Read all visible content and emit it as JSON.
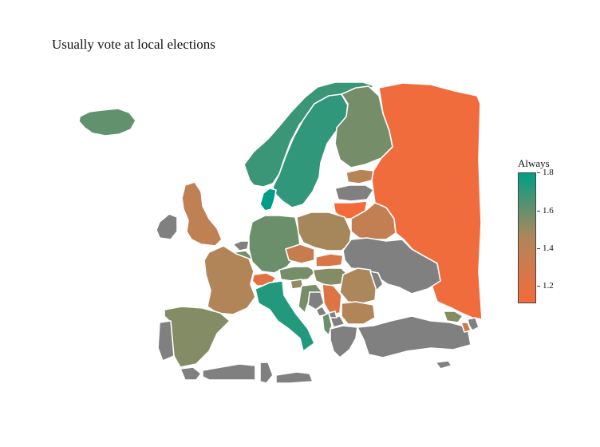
{
  "title": "Usually vote at local elections",
  "legend": {
    "title": "Always",
    "ticks": [
      "1.8",
      "1.6",
      "1.4",
      "1.2"
    ],
    "colors": {
      "high": "#009e86",
      "mid": "#b0865a",
      "low": "#f56a3a",
      "no_data": "#808080"
    },
    "range": [
      1.1,
      1.82
    ]
  },
  "map_data": {
    "scale": "continuous",
    "countries": [
      {
        "name": "Iceland",
        "value": 1.62
      },
      {
        "name": "Norway",
        "value": 1.7
      },
      {
        "name": "Sweden",
        "value": 1.72
      },
      {
        "name": "Finland",
        "value": 1.58
      },
      {
        "name": "Denmark",
        "value": 1.82
      },
      {
        "name": "Estonia",
        "value": 1.42
      },
      {
        "name": "Latvia",
        "value": null
      },
      {
        "name": "Lithuania",
        "value": 1.1
      },
      {
        "name": "Belarus",
        "value": 1.37
      },
      {
        "name": "Russia",
        "value": 1.12
      },
      {
        "name": "Ireland",
        "value": null
      },
      {
        "name": "United Kingdom",
        "value": 1.38
      },
      {
        "name": "Netherlands",
        "value": null
      },
      {
        "name": "Belgium",
        "value": 1.58
      },
      {
        "name": "Germany",
        "value": 1.6
      },
      {
        "name": "Poland",
        "value": 1.48
      },
      {
        "name": "France",
        "value": 1.45
      },
      {
        "name": "Switzerland",
        "value": 1.2
      },
      {
        "name": "Austria",
        "value": 1.58
      },
      {
        "name": "Czechia",
        "value": 1.35
      },
      {
        "name": "Slovakia",
        "value": 1.25
      },
      {
        "name": "Hungary",
        "value": 1.55
      },
      {
        "name": "Ukraine",
        "value": null
      },
      {
        "name": "Romania",
        "value": 1.47
      },
      {
        "name": "Moldova",
        "value": null
      },
      {
        "name": "Spain",
        "value": 1.55
      },
      {
        "name": "Portugal",
        "value": null
      },
      {
        "name": "Italy",
        "value": 1.75
      },
      {
        "name": "Slovenia",
        "value": 1.52
      },
      {
        "name": "Croatia",
        "value": 1.58
      },
      {
        "name": "Bosnia and Herzegovina",
        "value": null
      },
      {
        "name": "Serbia",
        "value": 1.23
      },
      {
        "name": "Montenegro",
        "value": null
      },
      {
        "name": "Albania",
        "value": 1.6
      },
      {
        "name": "North Macedonia",
        "value": null
      },
      {
        "name": "Kosovo",
        "value": null
      },
      {
        "name": "Bulgaria",
        "value": 1.45
      },
      {
        "name": "Greece",
        "value": null
      },
      {
        "name": "Turkey",
        "value": null
      },
      {
        "name": "Cyprus",
        "value": null
      },
      {
        "name": "Georgia",
        "value": 1.55
      },
      {
        "name": "Armenia",
        "value": 1.3
      },
      {
        "name": "Azerbaijan",
        "value": null
      },
      {
        "name": "Morocco",
        "value": null
      },
      {
        "name": "Algeria",
        "value": null
      },
      {
        "name": "Tunisia",
        "value": null
      },
      {
        "name": "Libya",
        "value": null
      }
    ]
  }
}
